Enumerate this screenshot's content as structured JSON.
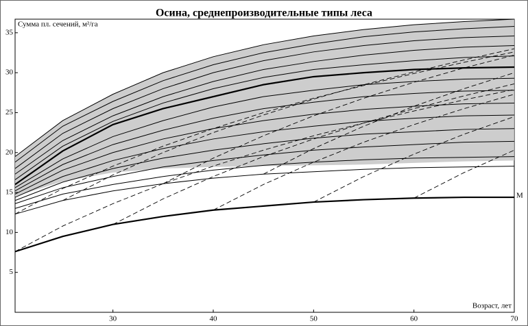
{
  "chart_data": {
    "type": "line",
    "title": "Осина, среднепроизводительные типы леса",
    "y_label": "Сумма пл. сечений, м²/га",
    "x_label": "Возраст, лет",
    "x": [
      20.25,
      25,
      30,
      35,
      40,
      45,
      50,
      55,
      60,
      65,
      70
    ],
    "xlim": [
      20.25,
      70
    ],
    "xticks": [
      30,
      40,
      50,
      60,
      70
    ],
    "ylim": [
      0,
      36.7
    ],
    "yticks": [
      5,
      10,
      15,
      20,
      25,
      30,
      35
    ],
    "band_color": "#c4c4c4",
    "band_lower": [
      14.5,
      16.4,
      17.5,
      18,
      18.2,
      18.3,
      18.4,
      18.5,
      18.7,
      18.9,
      19
    ],
    "series": [
      {
        "color": "#000",
        "width": 1,
        "values": [
          19.5,
          24,
          27.3,
          30,
          32,
          33.5,
          34.6,
          35.4,
          36,
          36.4,
          36.7
        ]
      },
      {
        "color": "#000",
        "width": 1,
        "values": [
          18.8,
          23.3,
          26.4,
          29,
          31,
          32.5,
          33.6,
          34.5,
          35.1,
          35.5,
          35.8
        ]
      },
      {
        "color": "#000",
        "width": 1,
        "values": [
          18,
          22.4,
          25.5,
          28,
          30,
          31.5,
          32.6,
          33.4,
          34,
          34.4,
          34.6
        ]
      },
      {
        "color": "#000",
        "width": 1,
        "values": [
          17.3,
          21.5,
          24.6,
          27,
          28.9,
          30.4,
          31.4,
          32.2,
          32.8,
          33.2,
          33.4
        ]
      },
      {
        "color": "#000",
        "width": 1,
        "values": [
          16.6,
          20.8,
          23.9,
          26.2,
          28,
          29.4,
          30.4,
          31,
          31.5,
          31.9,
          32.1
        ]
      },
      {
        "color": "#000",
        "width": 2.2,
        "values": [
          16,
          20.2,
          23.5,
          25.5,
          27,
          28.5,
          29.5,
          30,
          30.4,
          30.6,
          30.7
        ]
      },
      {
        "color": "#000",
        "width": 1,
        "values": [
          15.6,
          19.2,
          22,
          24,
          25.7,
          27,
          27.8,
          28.5,
          28.9,
          29.2,
          29.3
        ]
      },
      {
        "color": "#000",
        "width": 1,
        "values": [
          15.2,
          18.5,
          21,
          22.8,
          24.3,
          25.5,
          26.3,
          27,
          27.4,
          27.7,
          27.8
        ]
      },
      {
        "color": "#000",
        "width": 1,
        "values": [
          14.8,
          17.8,
          20,
          21.7,
          23,
          24,
          24.8,
          25.4,
          25.8,
          26.1,
          26.2
        ]
      },
      {
        "color": "#000",
        "width": 1,
        "values": [
          14.4,
          17,
          19,
          20.5,
          21.7,
          22.6,
          23.3,
          23.9,
          24.3,
          24.6,
          24.7
        ]
      },
      {
        "color": "#000",
        "width": 1,
        "values": [
          14,
          16.3,
          18,
          19.3,
          20.3,
          21.1,
          21.8,
          22.3,
          22.6,
          22.9,
          23
        ]
      },
      {
        "color": "#000",
        "width": 1,
        "values": [
          13.6,
          15.6,
          17,
          18.2,
          19,
          19.7,
          20.3,
          20.7,
          21,
          21.3,
          21.4
        ]
      },
      {
        "color": "#000",
        "width": 1,
        "values": [
          13,
          14.8,
          16,
          17,
          17.8,
          18.4,
          18.8,
          19.1,
          19.3,
          19.4,
          19.5
        ]
      },
      {
        "color": "#000",
        "width": 1,
        "values": [
          12.3,
          14,
          15.2,
          16.1,
          16.8,
          17.3,
          17.6,
          17.9,
          18.1,
          18.2,
          18.3
        ]
      },
      {
        "name": "M",
        "color": "#000",
        "width": 2.2,
        "values": [
          7.6,
          9.5,
          11,
          12,
          12.8,
          13.3,
          13.8,
          14.1,
          14.3,
          14.4,
          14.4
        ]
      },
      {
        "color": "#000",
        "width": 0.9,
        "dash": true,
        "values": [
          7.6,
          10.8,
          13.6,
          16.1,
          18.3,
          20.3,
          22.1,
          23.7,
          25.2,
          26.6,
          27.9
        ]
      },
      {
        "color": "#000",
        "width": 0.9,
        "dash": true,
        "values": [
          null,
          null,
          11,
          14.2,
          17,
          19.5,
          21.7,
          23.7,
          25.5,
          27.1,
          28.6
        ]
      },
      {
        "color": "#000",
        "width": 0.9,
        "dash": true,
        "values": [
          null,
          null,
          null,
          null,
          12.8,
          16,
          18.8,
          21.3,
          23.5,
          25.5,
          27.3
        ]
      },
      {
        "color": "#000",
        "width": 0.9,
        "dash": true,
        "values": [
          null,
          null,
          null,
          null,
          null,
          null,
          13.8,
          17,
          19.8,
          22.3,
          24.5
        ]
      },
      {
        "color": "#000",
        "width": 0.9,
        "dash": true,
        "values": [
          null,
          null,
          null,
          null,
          null,
          null,
          null,
          null,
          14.3,
          17.5,
          20.3
        ]
      },
      {
        "color": "#000",
        "width": 0.9,
        "dash": true,
        "values": [
          12.3,
          15.5,
          18.3,
          20.8,
          23,
          25,
          26.8,
          28.4,
          29.9,
          31.3,
          32.6
        ]
      },
      {
        "color": "#000",
        "width": 0.9,
        "dash": true,
        "values": [
          null,
          14,
          17.2,
          20,
          22.5,
          24.7,
          26.7,
          28.5,
          30.1,
          31.6,
          33
        ]
      },
      {
        "color": "#000",
        "width": 0.9,
        "dash": true,
        "values": [
          null,
          null,
          null,
          16.1,
          19.3,
          22.1,
          24.6,
          26.8,
          28.8,
          30.6,
          32.2
        ]
      },
      {
        "color": "#000",
        "width": 0.9,
        "dash": true,
        "values": [
          null,
          null,
          null,
          null,
          null,
          17.3,
          20.5,
          23.3,
          25.8,
          28,
          30
        ]
      }
    ]
  }
}
